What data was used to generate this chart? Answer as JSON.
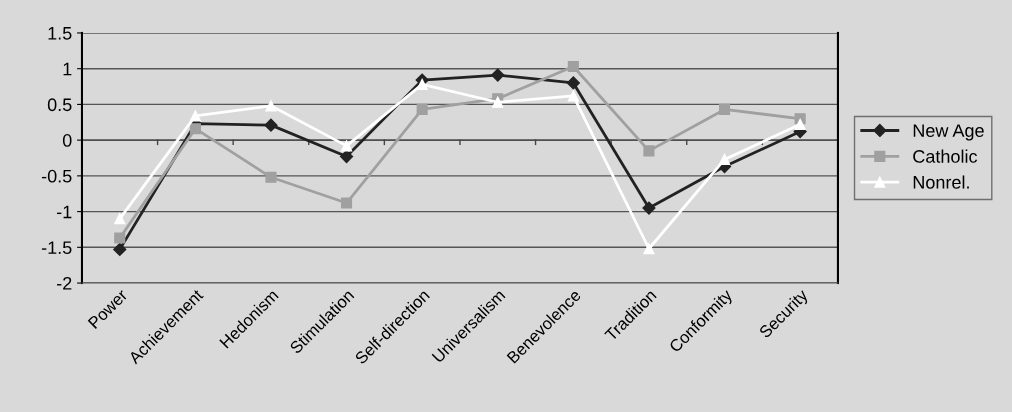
{
  "chart_data": {
    "type": "line",
    "categories": [
      "Power",
      "Achievement",
      "Hedonism",
      "Stimulation",
      "Self-direction",
      "Universalism",
      "Benevolence",
      "Tradition",
      "Conformity",
      "Security"
    ],
    "series": [
      {
        "name": "New Age",
        "color": "#222222",
        "marker": "diamond",
        "values": [
          -1.53,
          0.23,
          0.21,
          -0.23,
          0.84,
          0.91,
          0.8,
          -0.95,
          -0.37,
          0.12
        ]
      },
      {
        "name": "Catholic",
        "color": "#a0a0a0",
        "marker": "square",
        "values": [
          -1.37,
          0.16,
          -0.52,
          -0.88,
          0.43,
          0.58,
          1.03,
          -0.15,
          0.43,
          0.3
        ]
      },
      {
        "name": "Nonrel.",
        "color": "#ffffff",
        "marker": "triangle",
        "values": [
          -1.1,
          0.34,
          0.48,
          -0.08,
          0.78,
          0.53,
          0.62,
          -1.52,
          -0.27,
          0.22
        ]
      }
    ],
    "ylim": [
      -2,
      1.5
    ],
    "yticks": [
      -2,
      -1.5,
      -1,
      -0.5,
      0,
      0.5,
      1,
      1.5
    ],
    "grid": "y",
    "legend": "right"
  }
}
